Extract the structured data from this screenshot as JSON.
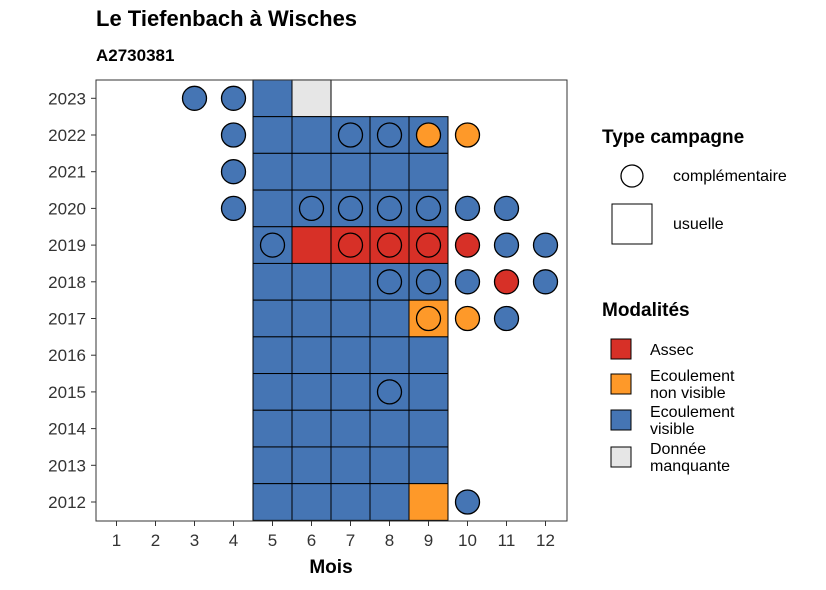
{
  "chart_data": {
    "type": "heatmap",
    "title": "Le Tiefenbach à Wisches",
    "subtitle": "A2730381",
    "xlabel": "Mois",
    "ylabel": "",
    "x_ticks": [
      "1",
      "2",
      "3",
      "4",
      "5",
      "6",
      "7",
      "8",
      "9",
      "10",
      "11",
      "12"
    ],
    "y_ticks": [
      "2012",
      "2013",
      "2014",
      "2015",
      "2016",
      "2017",
      "2018",
      "2019",
      "2020",
      "2021",
      "2022",
      "2023"
    ],
    "colors": {
      "Assec": "#d73027",
      "Ecoulement non visible": "#fe9929",
      "Ecoulement visible": "#4575b4",
      "Donnée manquante": "#e6e6e6"
    },
    "legend_shape": {
      "title": "Type campagne",
      "items": [
        {
          "key": "complementaire",
          "label": "complémentaire",
          "shape": "circle"
        },
        {
          "key": "usuelle",
          "label": "usuelle",
          "shape": "square"
        }
      ]
    },
    "legend_color": {
      "title": "Modalités",
      "items": [
        {
          "key": "Assec",
          "lines": [
            "Assec"
          ]
        },
        {
          "key": "Ecoulement non visible",
          "lines": [
            "Ecoulement",
            "non visible"
          ]
        },
        {
          "key": "Ecoulement visible",
          "lines": [
            "Ecoulement",
            "visible"
          ]
        },
        {
          "key": "Donnée manquante",
          "lines": [
            "Donnée",
            "manquante"
          ]
        }
      ]
    },
    "usuelle": [
      {
        "year": 2023,
        "month": 5,
        "m": "Ecoulement visible"
      },
      {
        "year": 2023,
        "month": 6,
        "m": "Donnée manquante"
      },
      {
        "year": 2022,
        "month": 5,
        "m": "Ecoulement visible"
      },
      {
        "year": 2022,
        "month": 6,
        "m": "Ecoulement visible"
      },
      {
        "year": 2022,
        "month": 7,
        "m": "Ecoulement visible"
      },
      {
        "year": 2022,
        "month": 8,
        "m": "Ecoulement visible"
      },
      {
        "year": 2022,
        "month": 9,
        "m": "Ecoulement visible"
      },
      {
        "year": 2021,
        "month": 5,
        "m": "Ecoulement visible"
      },
      {
        "year": 2021,
        "month": 6,
        "m": "Ecoulement visible"
      },
      {
        "year": 2021,
        "month": 7,
        "m": "Ecoulement visible"
      },
      {
        "year": 2021,
        "month": 8,
        "m": "Ecoulement visible"
      },
      {
        "year": 2021,
        "month": 9,
        "m": "Ecoulement visible"
      },
      {
        "year": 2020,
        "month": 5,
        "m": "Ecoulement visible"
      },
      {
        "year": 2020,
        "month": 6,
        "m": "Ecoulement visible"
      },
      {
        "year": 2020,
        "month": 7,
        "m": "Ecoulement visible"
      },
      {
        "year": 2020,
        "month": 8,
        "m": "Ecoulement visible"
      },
      {
        "year": 2020,
        "month": 9,
        "m": "Ecoulement visible"
      },
      {
        "year": 2019,
        "month": 5,
        "m": "Ecoulement visible"
      },
      {
        "year": 2019,
        "month": 6,
        "m": "Assec"
      },
      {
        "year": 2019,
        "month": 7,
        "m": "Assec"
      },
      {
        "year": 2019,
        "month": 8,
        "m": "Assec"
      },
      {
        "year": 2019,
        "month": 9,
        "m": "Assec"
      },
      {
        "year": 2018,
        "month": 5,
        "m": "Ecoulement visible"
      },
      {
        "year": 2018,
        "month": 6,
        "m": "Ecoulement visible"
      },
      {
        "year": 2018,
        "month": 7,
        "m": "Ecoulement visible"
      },
      {
        "year": 2018,
        "month": 8,
        "m": "Ecoulement visible"
      },
      {
        "year": 2018,
        "month": 9,
        "m": "Ecoulement visible"
      },
      {
        "year": 2017,
        "month": 5,
        "m": "Ecoulement visible"
      },
      {
        "year": 2017,
        "month": 6,
        "m": "Ecoulement visible"
      },
      {
        "year": 2017,
        "month": 7,
        "m": "Ecoulement visible"
      },
      {
        "year": 2017,
        "month": 8,
        "m": "Ecoulement visible"
      },
      {
        "year": 2017,
        "month": 9,
        "m": "Ecoulement non visible"
      },
      {
        "year": 2016,
        "month": 5,
        "m": "Ecoulement visible"
      },
      {
        "year": 2016,
        "month": 6,
        "m": "Ecoulement visible"
      },
      {
        "year": 2016,
        "month": 7,
        "m": "Ecoulement visible"
      },
      {
        "year": 2016,
        "month": 8,
        "m": "Ecoulement visible"
      },
      {
        "year": 2016,
        "month": 9,
        "m": "Ecoulement visible"
      },
      {
        "year": 2015,
        "month": 5,
        "m": "Ecoulement visible"
      },
      {
        "year": 2015,
        "month": 6,
        "m": "Ecoulement visible"
      },
      {
        "year": 2015,
        "month": 7,
        "m": "Ecoulement visible"
      },
      {
        "year": 2015,
        "month": 8,
        "m": "Ecoulement visible"
      },
      {
        "year": 2015,
        "month": 9,
        "m": "Ecoulement visible"
      },
      {
        "year": 2014,
        "month": 5,
        "m": "Ecoulement visible"
      },
      {
        "year": 2014,
        "month": 6,
        "m": "Ecoulement visible"
      },
      {
        "year": 2014,
        "month": 7,
        "m": "Ecoulement visible"
      },
      {
        "year": 2014,
        "month": 8,
        "m": "Ecoulement visible"
      },
      {
        "year": 2014,
        "month": 9,
        "m": "Ecoulement visible"
      },
      {
        "year": 2013,
        "month": 5,
        "m": "Ecoulement visible"
      },
      {
        "year": 2013,
        "month": 6,
        "m": "Ecoulement visible"
      },
      {
        "year": 2013,
        "month": 7,
        "m": "Ecoulement visible"
      },
      {
        "year": 2013,
        "month": 8,
        "m": "Ecoulement visible"
      },
      {
        "year": 2013,
        "month": 9,
        "m": "Ecoulement visible"
      },
      {
        "year": 2012,
        "month": 5,
        "m": "Ecoulement visible"
      },
      {
        "year": 2012,
        "month": 6,
        "m": "Ecoulement visible"
      },
      {
        "year": 2012,
        "month": 7,
        "m": "Ecoulement visible"
      },
      {
        "year": 2012,
        "month": 8,
        "m": "Ecoulement visible"
      },
      {
        "year": 2012,
        "month": 9,
        "m": "Ecoulement non visible"
      }
    ],
    "complementaire": [
      {
        "year": 2023,
        "month": 3,
        "m": "Ecoulement visible"
      },
      {
        "year": 2023,
        "month": 4,
        "m": "Ecoulement visible"
      },
      {
        "year": 2022,
        "month": 4,
        "m": "Ecoulement visible"
      },
      {
        "year": 2022,
        "month": 7,
        "m": "Ecoulement visible"
      },
      {
        "year": 2022,
        "month": 8,
        "m": "Ecoulement visible"
      },
      {
        "year": 2022,
        "month": 9,
        "m": "Ecoulement non visible"
      },
      {
        "year": 2022,
        "month": 10,
        "m": "Ecoulement non visible"
      },
      {
        "year": 2021,
        "month": 4,
        "m": "Ecoulement visible"
      },
      {
        "year": 2020,
        "month": 4,
        "m": "Ecoulement visible"
      },
      {
        "year": 2020,
        "month": 6,
        "m": "Ecoulement visible"
      },
      {
        "year": 2020,
        "month": 7,
        "m": "Ecoulement visible"
      },
      {
        "year": 2020,
        "month": 8,
        "m": "Ecoulement visible"
      },
      {
        "year": 2020,
        "month": 9,
        "m": "Ecoulement visible"
      },
      {
        "year": 2020,
        "month": 10,
        "m": "Ecoulement visible"
      },
      {
        "year": 2020,
        "month": 11,
        "m": "Ecoulement visible"
      },
      {
        "year": 2019,
        "month": 5,
        "m": "Ecoulement visible"
      },
      {
        "year": 2019,
        "month": 7,
        "m": "Assec"
      },
      {
        "year": 2019,
        "month": 8,
        "m": "Assec"
      },
      {
        "year": 2019,
        "month": 9,
        "m": "Assec"
      },
      {
        "year": 2019,
        "month": 10,
        "m": "Assec"
      },
      {
        "year": 2019,
        "month": 11,
        "m": "Ecoulement visible"
      },
      {
        "year": 2019,
        "month": 12,
        "m": "Ecoulement visible"
      },
      {
        "year": 2018,
        "month": 8,
        "m": "Ecoulement visible"
      },
      {
        "year": 2018,
        "month": 9,
        "m": "Ecoulement visible"
      },
      {
        "year": 2018,
        "month": 10,
        "m": "Ecoulement visible"
      },
      {
        "year": 2018,
        "month": 11,
        "m": "Assec"
      },
      {
        "year": 2018,
        "month": 12,
        "m": "Ecoulement visible"
      },
      {
        "year": 2017,
        "month": 9,
        "m": "Ecoulement non visible"
      },
      {
        "year": 2017,
        "month": 10,
        "m": "Ecoulement non visible"
      },
      {
        "year": 2017,
        "month": 11,
        "m": "Ecoulement visible"
      },
      {
        "year": 2015,
        "month": 8,
        "m": "Ecoulement visible"
      },
      {
        "year": 2012,
        "month": 10,
        "m": "Ecoulement visible"
      }
    ]
  }
}
